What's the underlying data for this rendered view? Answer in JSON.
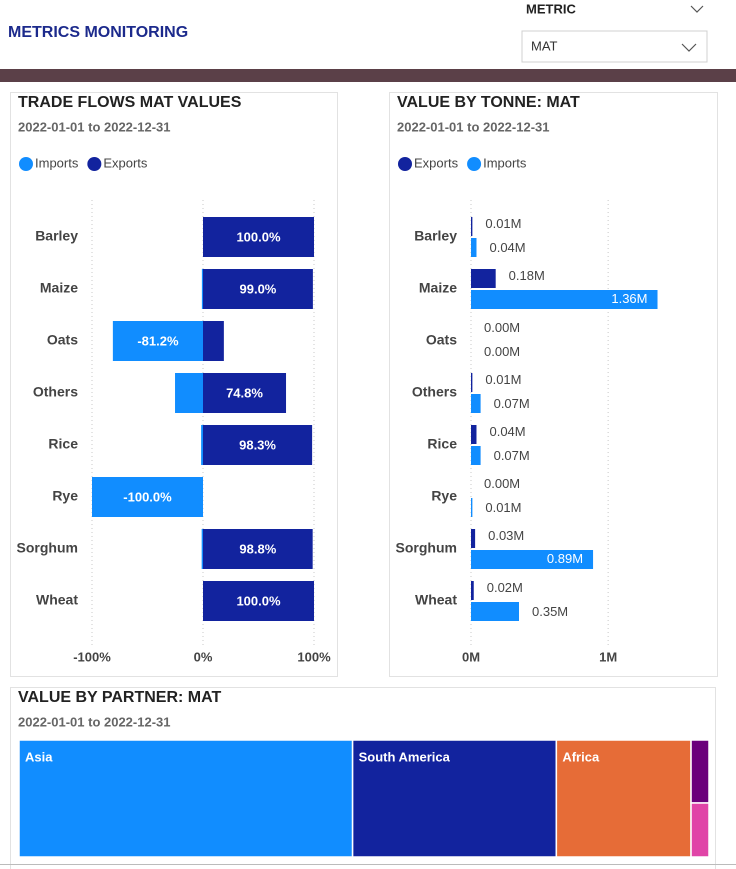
{
  "header": {
    "title": "METRICS MONITORING",
    "slicer_label": "METRIC",
    "slicer_value": "MAT"
  },
  "chart_data": [
    {
      "type": "bar",
      "orientation": "horizontal",
      "barmode": "relative",
      "title": "TRADE FLOWS MAT VALUES",
      "subtitle": "2022-01-01 to 2022-12-31",
      "categories": [
        "Barley",
        "Maize",
        "Oats",
        "Others",
        "Rice",
        "Rye",
        "Sorghum",
        "Wheat"
      ],
      "series": [
        {
          "name": "Imports",
          "color": "#118dff",
          "values": [
            0,
            -1.0,
            -81.2,
            -25.2,
            -1.7,
            -100.0,
            -1.2,
            0
          ],
          "value_labels": [
            null,
            null,
            "-81.2%",
            null,
            null,
            "-100.0%",
            null,
            null
          ]
        },
        {
          "name": "Exports",
          "color": "#12239e",
          "values": [
            100.0,
            99.0,
            18.8,
            74.8,
            98.3,
            0,
            98.8,
            100.0
          ],
          "value_labels": [
            "100.0%",
            "99.0%",
            null,
            "74.8%",
            "98.3%",
            null,
            "98.8%",
            "100.0%"
          ]
        }
      ],
      "xlim": [
        -100,
        100
      ],
      "xticks": [
        {
          "value": -100,
          "label": "-100%"
        },
        {
          "value": 0,
          "label": "0%"
        },
        {
          "value": 100,
          "label": "100%"
        }
      ],
      "grid": true
    },
    {
      "type": "bar",
      "orientation": "horizontal",
      "barmode": "group",
      "title": "VALUE BY TONNE: MAT",
      "subtitle": "2022-01-01 to 2022-12-31",
      "categories": [
        "Barley",
        "Maize",
        "Oats",
        "Others",
        "Rice",
        "Rye",
        "Sorghum",
        "Wheat"
      ],
      "series": [
        {
          "name": "Exports",
          "color": "#12239e",
          "values": [
            0.01,
            0.18,
            0.0,
            0.01,
            0.04,
            0.0,
            0.03,
            0.02
          ],
          "value_labels": [
            "0.01M",
            "0.18M",
            "0.00M",
            "0.01M",
            "0.04M",
            "0.00M",
            "0.03M",
            "0.02M"
          ]
        },
        {
          "name": "Imports",
          "color": "#118dff",
          "values": [
            0.04,
            1.36,
            0.0,
            0.07,
            0.07,
            0.01,
            0.89,
            0.35
          ],
          "value_labels": [
            "0.04M",
            "1.36M",
            "0.00M",
            "0.07M",
            "0.07M",
            "0.01M",
            "0.89M",
            "0.35M"
          ]
        }
      ],
      "xlim": [
        0,
        1.4
      ],
      "xticks": [
        {
          "value": 0,
          "label": "0M"
        },
        {
          "value": 1,
          "label": "1M"
        }
      ],
      "grid": true
    },
    {
      "type": "treemap",
      "title": "VALUE BY PARTNER: MAT",
      "subtitle": "2022-01-01 to 2022-12-31",
      "categories": [
        "Asia",
        "South America",
        "Africa",
        null,
        null
      ],
      "values": [
        48.3,
        29.5,
        19.5,
        1.4,
        1.2
      ],
      "colors": [
        "#118dff",
        "#12239e",
        "#e66c37",
        "#6b007b",
        "#e044a7"
      ]
    }
  ]
}
